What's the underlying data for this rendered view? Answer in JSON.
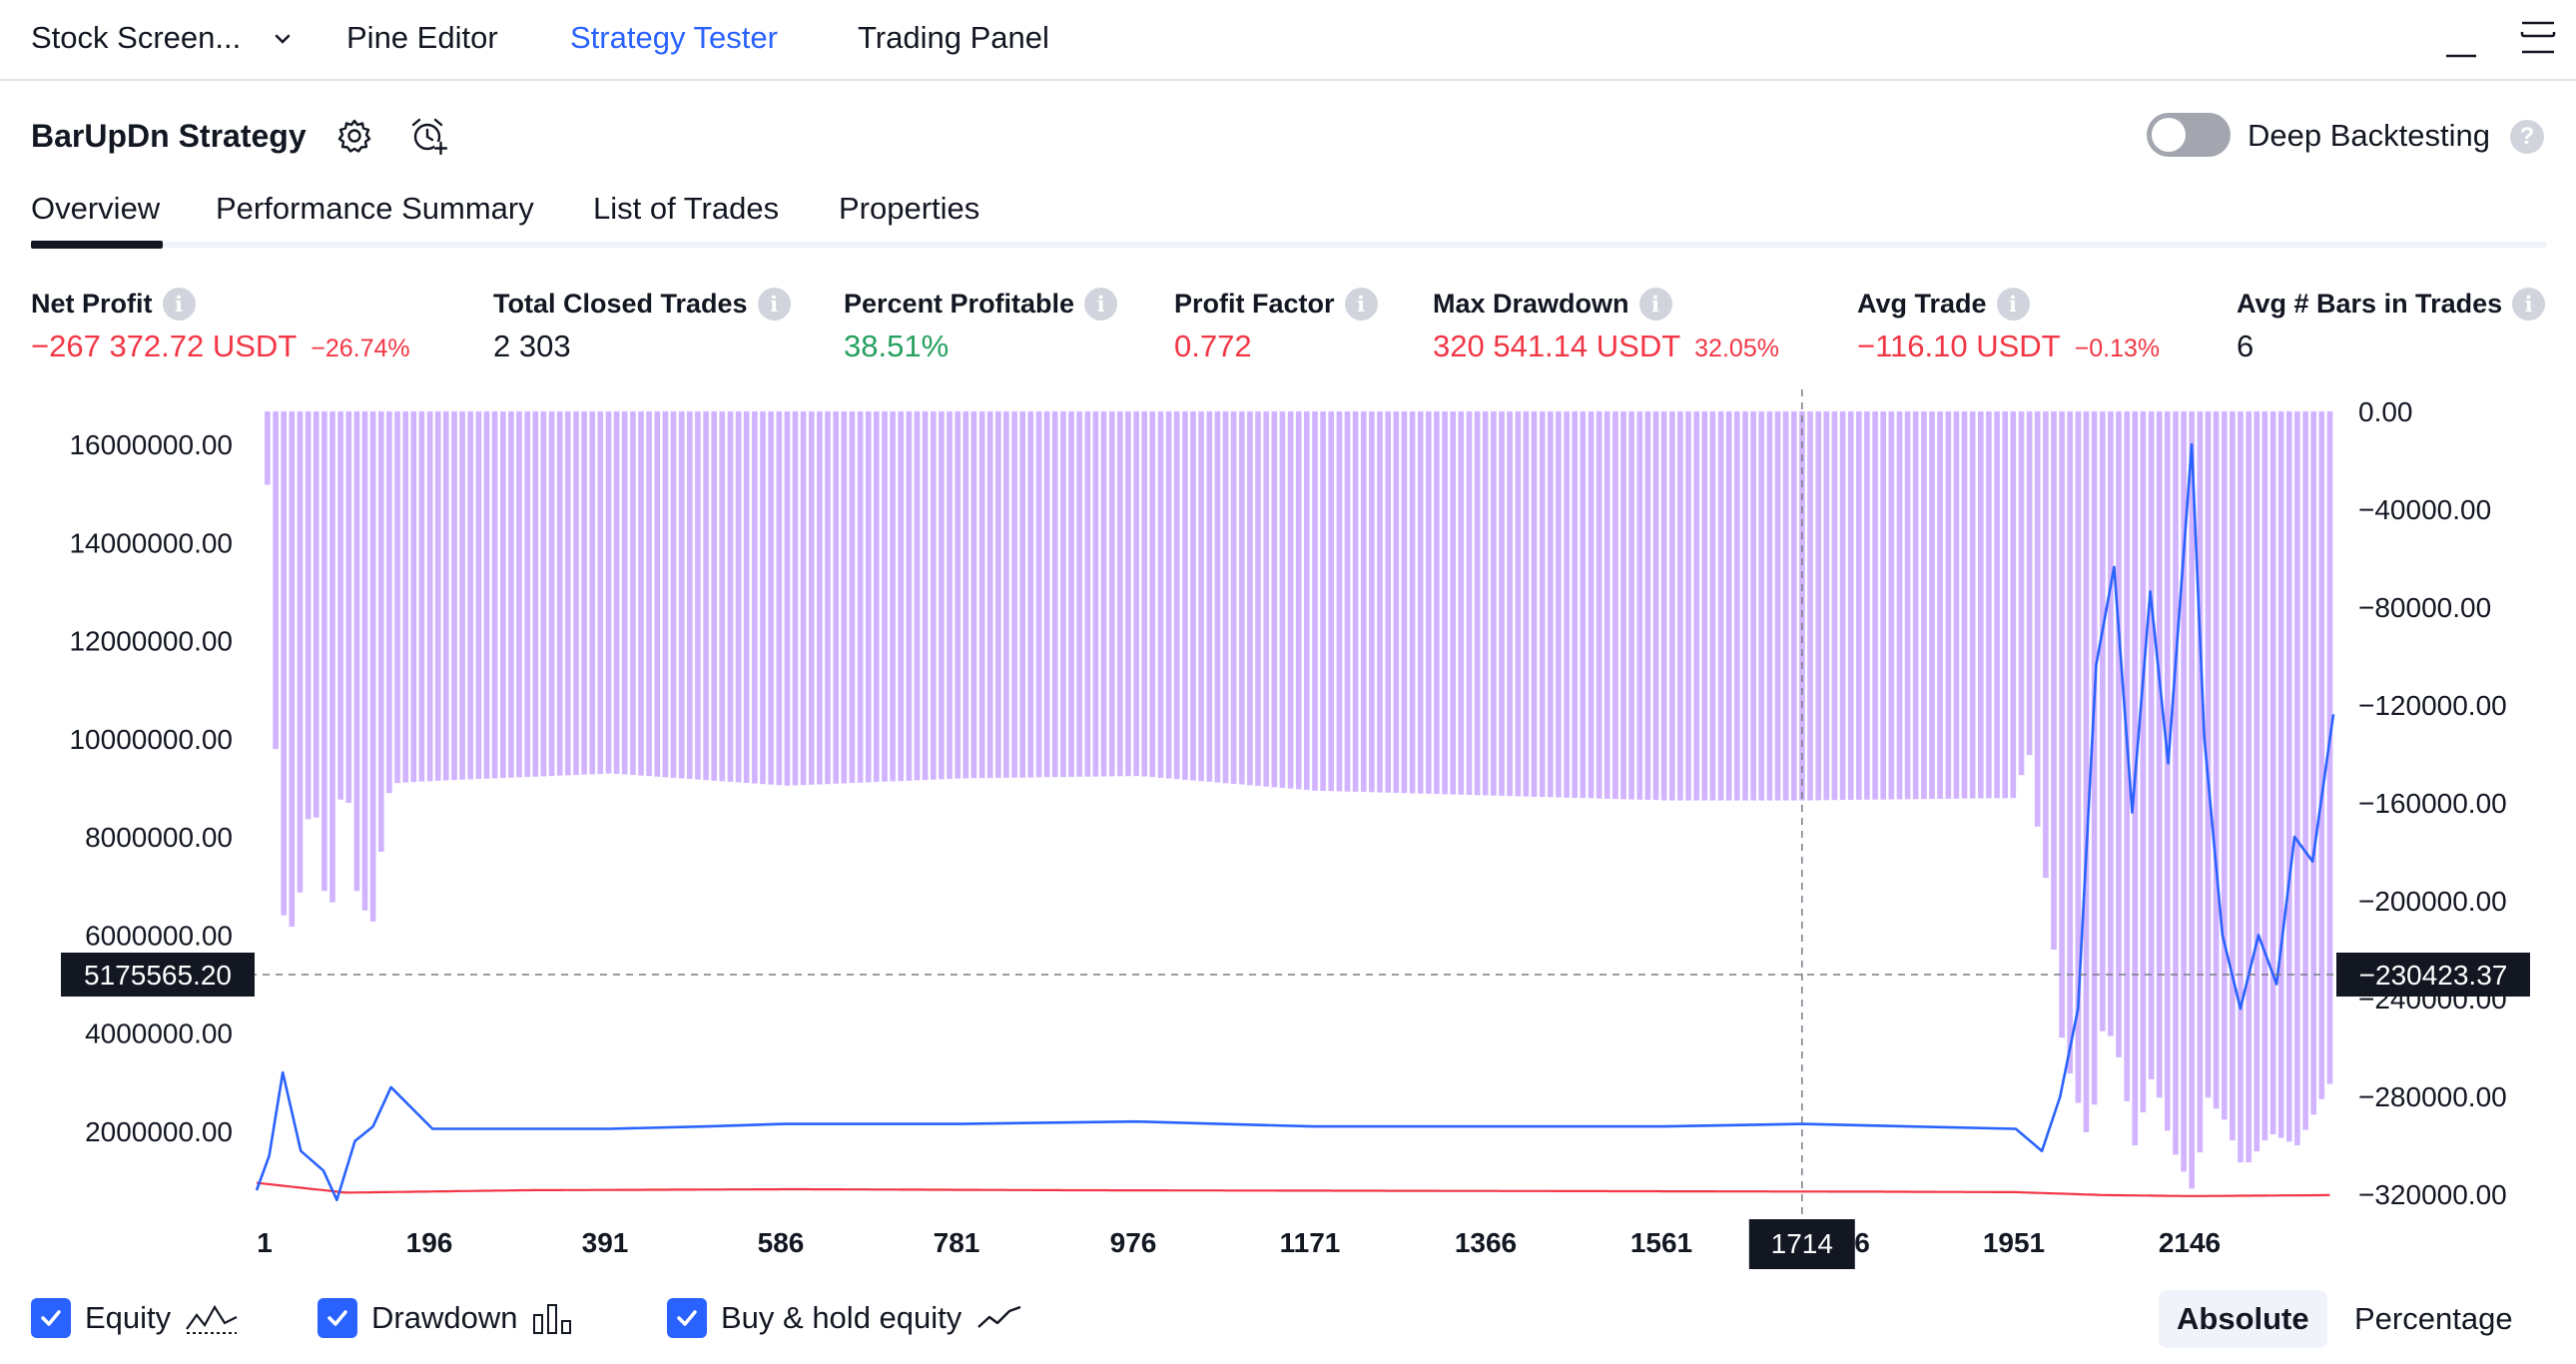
{
  "topbar": {
    "stock_screener": "Stock Screen...",
    "pine_editor": "Pine Editor",
    "strategy_tester": "Strategy Tester",
    "trading_panel": "Trading Panel"
  },
  "header": {
    "strategy_name": "BarUpDn Strategy",
    "deep_backtesting_label": "Deep Backtesting",
    "deep_backtesting_enabled": false,
    "help_glyph": "?"
  },
  "tabs": [
    {
      "label": "Overview",
      "active": true
    },
    {
      "label": "Performance Summary",
      "active": false
    },
    {
      "label": "List of Trades",
      "active": false
    },
    {
      "label": "Properties",
      "active": false
    }
  ],
  "stats": {
    "net_profit": {
      "label": "Net Profit",
      "value": "−267 372.72 USDT",
      "sub": "−26.74%"
    },
    "total_closed_trades": {
      "label": "Total Closed Trades",
      "value": "2 303"
    },
    "percent_profitable": {
      "label": "Percent Profitable",
      "value": "38.51%"
    },
    "profit_factor": {
      "label": "Profit Factor",
      "value": "0.772"
    },
    "max_drawdown": {
      "label": "Max Drawdown",
      "value": "320 541.14 USDT",
      "sub": "32.05%"
    },
    "avg_trade": {
      "label": "Avg Trade",
      "value": "−116.10 USDT",
      "sub": "−0.13%"
    },
    "avg_bars": {
      "label": "Avg # Bars in Trades",
      "value": "6"
    },
    "info_glyph": "i"
  },
  "chart_data": {
    "type": "area",
    "left_axis": {
      "ticks": [
        "16000000.00",
        "14000000.00",
        "12000000.00",
        "10000000.00",
        "8000000.00",
        "6000000.00",
        "4000000.00",
        "2000000.00"
      ],
      "tick_values": [
        16000000,
        14000000,
        12000000,
        10000000,
        8000000,
        6000000,
        4000000,
        2000000
      ],
      "crosshair_label": "5175565.20"
    },
    "right_axis": {
      "ticks": [
        "0.00",
        "−40000.00",
        "−80000.00",
        "−120000.00",
        "−160000.00",
        "−200000.00",
        "−240000.00",
        "−280000.00",
        "−320000.00"
      ],
      "tick_values": [
        0,
        -40000,
        -80000,
        -120000,
        -160000,
        -200000,
        -240000,
        -280000,
        -320000
      ],
      "crosshair_label": "−230423.37"
    },
    "x_axis": {
      "ticks": [
        "1",
        "196",
        "391",
        "586",
        "781",
        "976",
        "1171",
        "1366",
        "1561",
        "6",
        "1951",
        "2146"
      ],
      "crosshair_label": "1714"
    },
    "series": [
      {
        "name": "Equity",
        "color": "#2962ff",
        "x": [
          1,
          15,
          30,
          50,
          75,
          90,
          110,
          130,
          150,
          196,
          391,
          500,
          586,
          781,
          976,
          1171,
          1366,
          1561,
          1714,
          1951,
          1980,
          2000,
          2020,
          2040,
          2060,
          2080,
          2100,
          2120,
          2146,
          2160,
          2180,
          2200,
          2220,
          2240,
          2260,
          2280,
          2303
        ],
        "values": [
          800000,
          1500000,
          3200000,
          1600000,
          1200000,
          600000,
          1800000,
          2100000,
          2900000,
          2050000,
          2050000,
          2100000,
          2150000,
          2150000,
          2200000,
          2100000,
          2100000,
          2100000,
          2150000,
          2050000,
          1600000,
          2700000,
          4500000,
          11500000,
          13500000,
          8500000,
          13000000,
          9500000,
          16000000,
          10000000,
          6000000,
          4500000,
          6000000,
          5000000,
          8000000,
          7500000,
          10500000
        ]
      },
      {
        "name": "Drawdown",
        "color": "#d1b3ff",
        "x": [
          1,
          10,
          20,
          30,
          45,
          60,
          70,
          80,
          95,
          110,
          130,
          140,
          150,
          196,
          391,
          586,
          781,
          976,
          1171,
          1366,
          1561,
          1714,
          1951,
          1960,
          1970,
          1985,
          2000,
          2015,
          2030,
          2045,
          2060,
          2080,
          2100,
          2120,
          2146,
          2160,
          2180,
          2200,
          2230,
          2260,
          2303
        ],
        "values": [
          0,
          -30000,
          -150000,
          -220000,
          -200000,
          -150000,
          -190000,
          -210000,
          -140000,
          -200000,
          -210000,
          -160000,
          -152000,
          -151000,
          -148000,
          -153000,
          -150000,
          -149000,
          -155000,
          -157000,
          -159000,
          -159000,
          -158000,
          -130000,
          -165000,
          -200000,
          -260000,
          -280000,
          -300000,
          -250000,
          -260000,
          -300000,
          -270000,
          -300000,
          -320000,
          -280000,
          -290000,
          -310000,
          -295000,
          -300000,
          -270000
        ]
      },
      {
        "name": "Buy & hold equity",
        "color": "#f23645",
        "x": [
          1,
          100,
          300,
          600,
          900,
          1200,
          1500,
          1800,
          1951,
          2050,
          2146,
          2303
        ],
        "values": [
          950000,
          750000,
          800000,
          820000,
          800000,
          790000,
          780000,
          770000,
          760000,
          700000,
          680000,
          700000
        ]
      }
    ]
  },
  "legend": {
    "equity": "Equity",
    "drawdown": "Drawdown",
    "buy_hold": "Buy & hold equity",
    "absolute": "Absolute",
    "percentage": "Percentage"
  }
}
